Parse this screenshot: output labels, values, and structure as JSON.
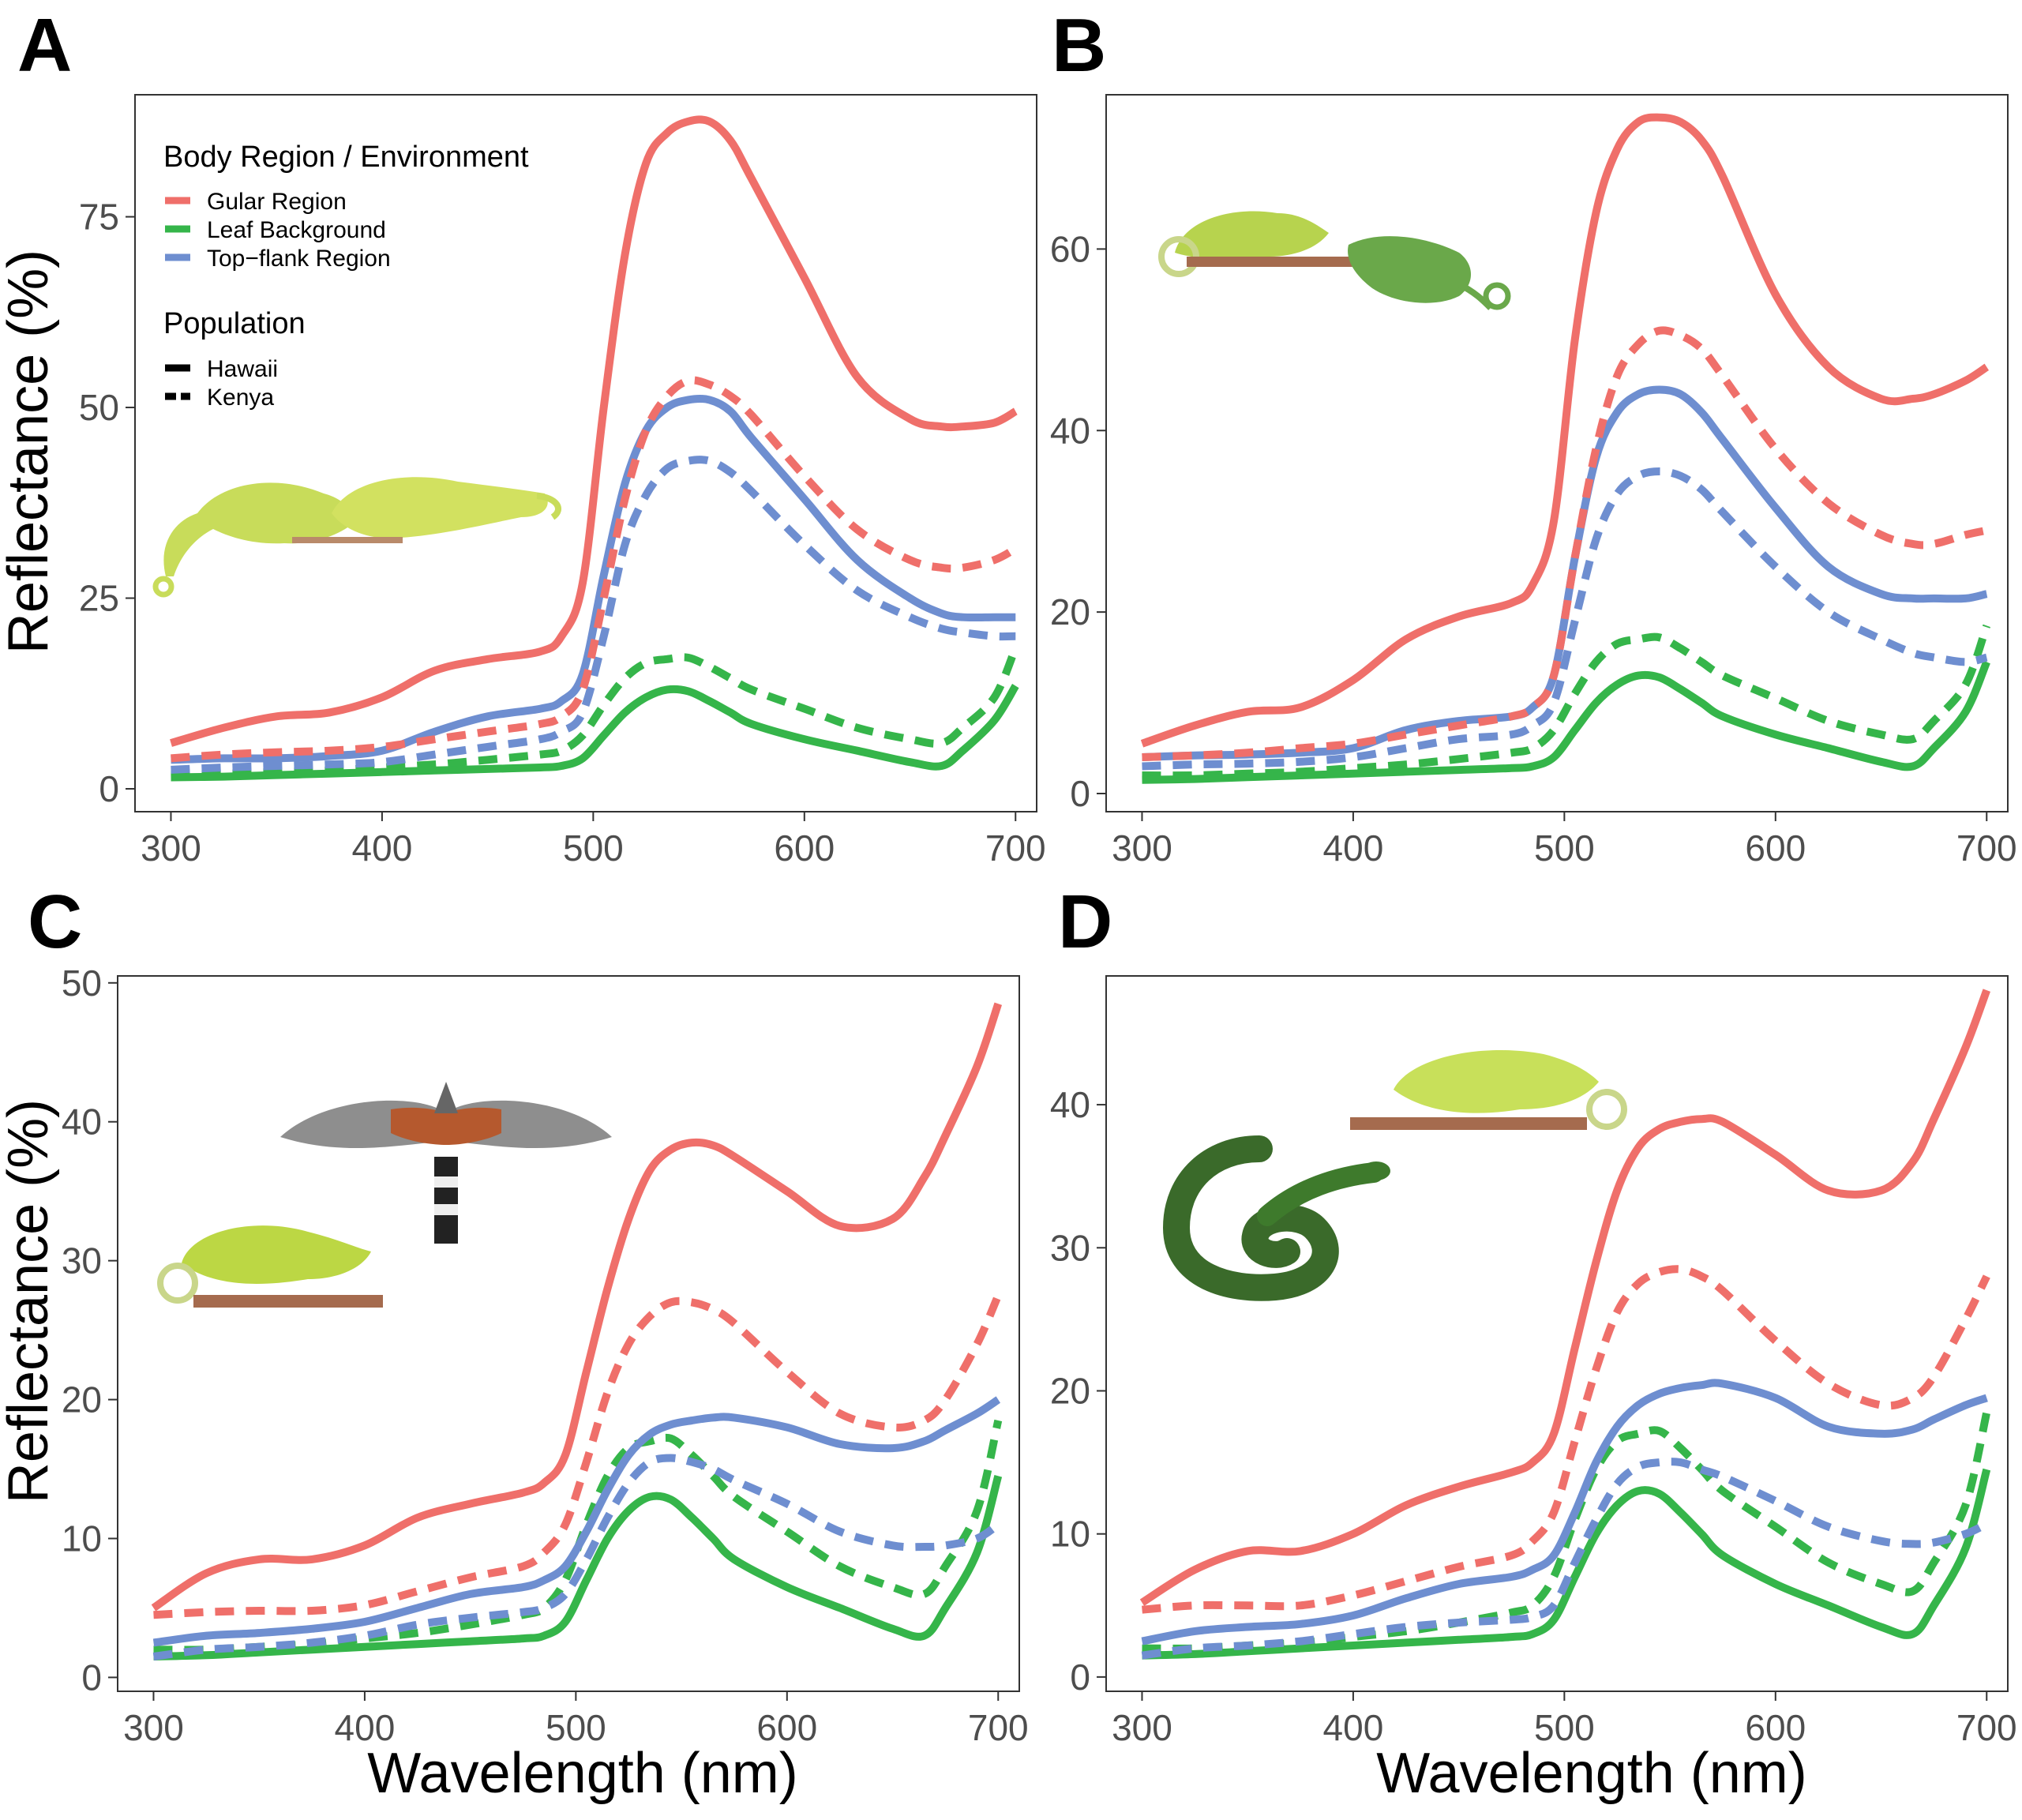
{
  "chart_data": [
    {
      "panel": "A",
      "type": "line",
      "title": "",
      "xlabel": "",
      "ylabel": "Reflectance (%)",
      "xlim": [
        283,
        710
      ],
      "ylim": [
        -3,
        91
      ],
      "xticks": [
        300,
        400,
        500,
        600,
        700
      ],
      "yticks": [
        0,
        25,
        50,
        75
      ],
      "grid": false,
      "legend": {
        "position": "top-left",
        "color_title": "Body Region / Environment",
        "color_entries": [
          {
            "label": "Gular Region",
            "color": "#ef6f6a"
          },
          {
            "label": "Leaf Background",
            "color": "#35b54a"
          },
          {
            "label": "Top−flank Region",
            "color": "#6e8ed0"
          }
        ],
        "linetype_title": "Population",
        "linetype_entries": [
          {
            "label": "Hawaii",
            "dash": "solid"
          },
          {
            "label": "Kenya",
            "dash": "dashed"
          }
        ]
      },
      "illustrations": [
        "two-chameleons-illustration"
      ],
      "x": [
        300,
        325,
        350,
        375,
        400,
        425,
        450,
        475,
        485,
        495,
        505,
        515,
        525,
        535,
        545,
        555,
        565,
        575,
        600,
        625,
        650,
        665,
        675,
        690,
        700
      ],
      "series": [
        {
          "region": "Gular Region",
          "population": "Hawaii",
          "values": [
            6,
            8,
            9.5,
            10,
            12,
            15.5,
            17,
            18,
            20,
            27,
            50,
            70,
            82,
            86,
            87.5,
            87.5,
            85,
            80,
            67,
            54,
            48.5,
            47.5,
            47.5,
            48,
            49.5
          ]
        },
        {
          "region": "Gular Region",
          "population": "Kenya",
          "values": [
            4,
            4.5,
            4.8,
            5,
            5.5,
            6.5,
            7.5,
            8.5,
            9.5,
            13,
            25,
            38,
            47,
            51.5,
            53.5,
            53,
            51.5,
            49,
            41,
            34,
            30,
            29,
            29,
            30,
            31.5
          ]
        },
        {
          "region": "Top−flank Region",
          "population": "Hawaii",
          "values": [
            3.8,
            4,
            4,
            4.3,
            5,
            7.5,
            9.5,
            10.5,
            11.5,
            15,
            28,
            40,
            47,
            50,
            51,
            51,
            49.5,
            46,
            38,
            30,
            25,
            23,
            22.5,
            22.5,
            22.5
          ]
        },
        {
          "region": "Top−flank Region",
          "population": "Kenya",
          "values": [
            2.5,
            2.8,
            3,
            3.2,
            3.5,
            4.5,
            5.5,
            6.5,
            7.5,
            10,
            20,
            32,
            38.5,
            42,
            43,
            43,
            41.5,
            39,
            32,
            26,
            22.5,
            21,
            20.5,
            20,
            20
          ]
        },
        {
          "region": "Leaf Background",
          "population": "Hawaii",
          "values": [
            1.5,
            1.6,
            1.8,
            2,
            2.2,
            2.4,
            2.6,
            2.8,
            3,
            4,
            7,
            10,
            12,
            13,
            12.8,
            11.5,
            10,
            8.5,
            6.5,
            5,
            3.5,
            3,
            5,
            9,
            13.5
          ]
        },
        {
          "region": "Leaf Background",
          "population": "Kenya",
          "values": [
            2,
            2,
            2.2,
            2.4,
            2.8,
            3.2,
            3.8,
            4.5,
            5,
            7,
            11,
            14.5,
            16.5,
            17,
            17.2,
            16,
            14.5,
            13,
            10.5,
            8,
            6.5,
            6,
            8,
            12,
            18.5
          ]
        }
      ]
    },
    {
      "panel": "B",
      "type": "line",
      "title": "",
      "xlabel": "",
      "ylabel": "",
      "xlim": [
        283,
        710
      ],
      "ylim": [
        -2,
        77
      ],
      "xticks": [
        300,
        400,
        500,
        600,
        700
      ],
      "yticks": [
        0,
        20,
        40,
        60
      ],
      "grid": false,
      "illustrations": [
        "two-chameleons-illustration"
      ],
      "x": [
        300,
        325,
        350,
        375,
        400,
        425,
        450,
        475,
        485,
        495,
        505,
        515,
        525,
        535,
        545,
        555,
        565,
        575,
        600,
        625,
        650,
        665,
        675,
        690,
        700
      ],
      "series": [
        {
          "region": "Gular Region",
          "population": "Hawaii",
          "values": [
            5.5,
            7.5,
            9,
            9.5,
            12.5,
            17,
            19.5,
            21,
            23,
            30,
            50,
            64,
            71,
            74,
            74.5,
            74,
            72,
            68,
            55,
            47,
            43.5,
            43.5,
            44,
            45.5,
            47
          ]
        },
        {
          "region": "Gular Region",
          "population": "Kenya",
          "values": [
            4,
            4.2,
            4.5,
            5,
            5.5,
            6.5,
            7.5,
            8.5,
            9.5,
            13,
            26,
            38,
            46,
            49.5,
            51,
            50.5,
            49,
            46,
            38,
            32,
            28.5,
            27.5,
            27.5,
            28.5,
            29
          ]
        },
        {
          "region": "Top−flank Region",
          "population": "Hawaii",
          "values": [
            4,
            4.2,
            4.3,
            4.5,
            5,
            7,
            8,
            8.5,
            9.5,
            13,
            26,
            37,
            42,
            44,
            44.5,
            44,
            42,
            39,
            31.5,
            25,
            22,
            21.5,
            21.5,
            21.5,
            22
          ]
        },
        {
          "region": "Top−flank Region",
          "population": "Kenya",
          "values": [
            3,
            3.2,
            3.3,
            3.5,
            4,
            5,
            6,
            6.5,
            7.5,
            10,
            19,
            28,
            33,
            35,
            35.5,
            35,
            33.5,
            31,
            25,
            20,
            17,
            15.5,
            15,
            14.5,
            15
          ]
        },
        {
          "region": "Leaf Background",
          "population": "Hawaii",
          "values": [
            1.5,
            1.6,
            1.8,
            2,
            2.2,
            2.4,
            2.6,
            2.8,
            3,
            4,
            7,
            10,
            12,
            13,
            12.8,
            11.5,
            10,
            8.5,
            6.5,
            5,
            3.5,
            3,
            5,
            9,
            14.5
          ]
        },
        {
          "region": "Leaf Background",
          "population": "Kenya",
          "values": [
            2,
            2,
            2.2,
            2.4,
            2.8,
            3.2,
            3.8,
            4.5,
            5,
            7,
            11,
            14.5,
            16.5,
            17,
            17.2,
            16,
            14.5,
            13,
            10.5,
            8,
            6.5,
            6,
            8,
            12,
            18.5
          ]
        }
      ]
    },
    {
      "panel": "C",
      "type": "line",
      "title": "",
      "xlabel": "Wavelength (nm)",
      "ylabel": "Reflectance (%)",
      "xlim": [
        283,
        710
      ],
      "ylim": [
        -1,
        50.5
      ],
      "xticks": [
        300,
        400,
        500,
        600,
        700
      ],
      "yticks": [
        0,
        10,
        20,
        30,
        40,
        50
      ],
      "grid": false,
      "illustrations": [
        "hawk-illustration",
        "chameleon-illustration"
      ],
      "x": [
        300,
        325,
        350,
        375,
        400,
        425,
        450,
        475,
        485,
        495,
        505,
        515,
        525,
        535,
        545,
        555,
        565,
        575,
        600,
        625,
        650,
        665,
        675,
        690,
        700
      ],
      "series": [
        {
          "region": "Gular Region",
          "population": "Hawaii",
          "values": [
            5,
            7.5,
            8.5,
            8.5,
            9.5,
            11.5,
            12.5,
            13.3,
            14,
            16,
            22,
            28,
            33,
            36.5,
            38,
            38.5,
            38.3,
            37.5,
            35,
            32.5,
            33,
            36,
            39,
            44,
            48.5
          ]
        },
        {
          "region": "Gular Region",
          "population": "Kenya",
          "values": [
            4.5,
            4.7,
            4.8,
            4.8,
            5.2,
            6.2,
            7.2,
            8,
            9,
            11,
            15.5,
            20.5,
            24,
            26,
            27,
            27,
            26.5,
            25.5,
            22,
            19,
            18,
            18.5,
            20,
            24,
            27.5
          ]
        },
        {
          "region": "Top−flank Region",
          "population": "Hawaii",
          "values": [
            2.5,
            3,
            3.2,
            3.5,
            4,
            5,
            6,
            6.5,
            7,
            8,
            10.5,
            13.5,
            16,
            17.5,
            18.2,
            18.5,
            18.7,
            18.7,
            18,
            16.8,
            16.5,
            17,
            17.8,
            19,
            20
          ]
        },
        {
          "region": "Top−flank Region",
          "population": "Kenya",
          "values": [
            1.5,
            2,
            2.2,
            2.5,
            3,
            3.8,
            4.3,
            4.7,
            5,
            6,
            8.5,
            11.5,
            14,
            15.5,
            15.8,
            15.5,
            15,
            14.2,
            12.5,
            10.5,
            9.5,
            9.4,
            9.5,
            10,
            11
          ]
        },
        {
          "region": "Leaf Background",
          "population": "Hawaii",
          "values": [
            1.5,
            1.6,
            1.8,
            2,
            2.2,
            2.4,
            2.6,
            2.8,
            3,
            4,
            7,
            10,
            12,
            13,
            12.8,
            11.5,
            10,
            8.5,
            6.5,
            5,
            3.5,
            3,
            5,
            9,
            14.5
          ]
        },
        {
          "region": "Leaf Background",
          "population": "Kenya",
          "values": [
            2,
            2,
            2.2,
            2.4,
            2.8,
            3.2,
            3.8,
            4.5,
            5,
            7,
            11,
            14.5,
            16.5,
            17,
            17.2,
            16,
            14.5,
            13,
            10.5,
            8,
            6.5,
            6,
            8,
            12,
            18.5
          ]
        }
      ]
    },
    {
      "panel": "D",
      "type": "line",
      "title": "",
      "xlabel": "Wavelength (nm)",
      "ylabel": "",
      "xlim": [
        283,
        710
      ],
      "ylim": [
        -1,
        49
      ],
      "xticks": [
        300,
        400,
        500,
        600,
        700
      ],
      "yticks": [
        0,
        10,
        20,
        30,
        40
      ],
      "grid": false,
      "illustrations": [
        "chameleon-illustration",
        "snake-illustration"
      ],
      "x": [
        300,
        325,
        350,
        375,
        400,
        425,
        450,
        475,
        485,
        495,
        505,
        515,
        525,
        535,
        545,
        555,
        565,
        575,
        600,
        625,
        650,
        665,
        675,
        690,
        700
      ],
      "series": [
        {
          "region": "Gular Region",
          "population": "Hawaii",
          "values": [
            5.2,
            7.5,
            8.8,
            8.8,
            10,
            12,
            13.3,
            14.3,
            15,
            17,
            23,
            29,
            34,
            37,
            38.3,
            38.8,
            39,
            38.8,
            36.5,
            34,
            34,
            36,
            39,
            44,
            48
          ]
        },
        {
          "region": "Gular Region",
          "population": "Kenya",
          "values": [
            4.7,
            5,
            5,
            5,
            5.7,
            6.7,
            7.7,
            8.5,
            9.5,
            11.5,
            16.5,
            21.5,
            25.5,
            27.5,
            28.3,
            28.5,
            28,
            27,
            23.5,
            20.5,
            19,
            19.5,
            21,
            25,
            28
          ]
        },
        {
          "region": "Top−flank Region",
          "population": "Hawaii",
          "values": [
            2.5,
            3.2,
            3.5,
            3.7,
            4.3,
            5.5,
            6.5,
            7,
            7.5,
            8.5,
            11.5,
            15,
            17.5,
            19,
            19.8,
            20.2,
            20.4,
            20.5,
            19.5,
            17.5,
            17,
            17.3,
            18,
            19,
            19.5
          ]
        },
        {
          "region": "Top−flank Region",
          "population": "Kenya",
          "values": [
            1.5,
            2,
            2.2,
            2.5,
            3,
            3.5,
            3.8,
            4,
            4.2,
            5,
            8,
            11,
            13.5,
            14.7,
            15,
            15,
            14.5,
            14,
            12.3,
            10.5,
            9.5,
            9.3,
            9.4,
            10,
            10.7
          ]
        },
        {
          "region": "Leaf Background",
          "population": "Hawaii",
          "values": [
            1.5,
            1.6,
            1.8,
            2,
            2.2,
            2.4,
            2.6,
            2.8,
            3,
            4,
            7,
            10,
            12,
            13,
            12.8,
            11.5,
            10,
            8.5,
            6.5,
            5,
            3.5,
            3,
            5,
            9,
            14.5
          ]
        },
        {
          "region": "Leaf Background",
          "population": "Kenya",
          "values": [
            2,
            2,
            2.2,
            2.4,
            2.8,
            3.2,
            3.8,
            4.5,
            5,
            7,
            11,
            14.5,
            16.5,
            17,
            17.2,
            16,
            14.5,
            13,
            10.5,
            8,
            6.5,
            6,
            8,
            12,
            18.5
          ]
        }
      ]
    }
  ],
  "colors": {
    "Gular Region": "#ef6f6a",
    "Leaf Background": "#35b54a",
    "Top−flank Region": "#6e8ed0"
  }
}
